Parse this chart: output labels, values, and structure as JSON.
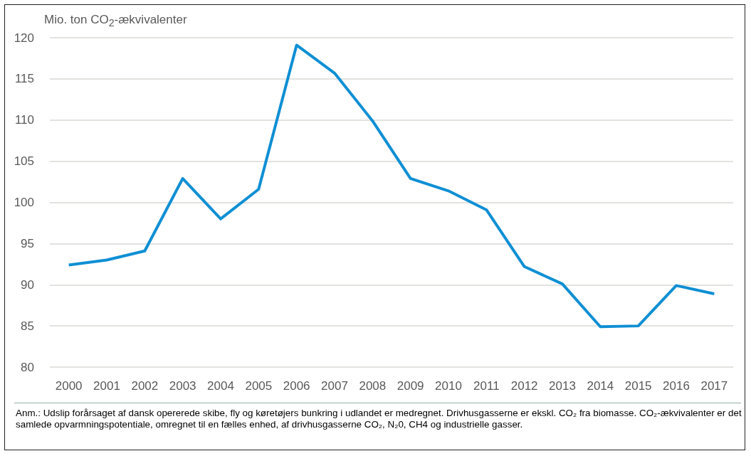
{
  "chart_data": {
    "type": "line",
    "ylabel": "Mio. ton CO$_{2}$-ækvivalenter",
    "categories": [
      "2000",
      "2001",
      "2002",
      "2003",
      "2004",
      "2005",
      "2006",
      "2007",
      "2008",
      "2009",
      "2010",
      "2011",
      "2012",
      "2013",
      "2014",
      "2015",
      "2016",
      "2017"
    ],
    "series": [
      {
        "color": "#0f8fd4",
        "values": [
          92.4,
          93.0,
          94.1,
          102.9,
          98.0,
          101.6,
          119.1,
          115.7,
          109.9,
          102.9,
          101.4,
          99.1,
          92.2,
          90.1,
          84.9,
          85.0,
          89.9,
          88.9
        ]
      }
    ],
    "ylim": [
      80,
      120
    ],
    "yticks": [
      80,
      85,
      90,
      95,
      100,
      105,
      110,
      115,
      120
    ],
    "grid": "y",
    "marker": "none",
    "line_style": "solid",
    "annotations": [
      "Anm.: Udslip forårsaget af dansk opererede skibe, fly og køretøjers bunkring i udlandet er medregnet. Drivhusgasserne er ekskl. CO₂ fra biomasse. CO₂-ækvivalenter er det samlede opvarmningspotentiale, omregnet til en fælles enhed, af drivhusgasserne CO₂, N₂0, CH4 og industrielle gasser."
    ]
  }
}
